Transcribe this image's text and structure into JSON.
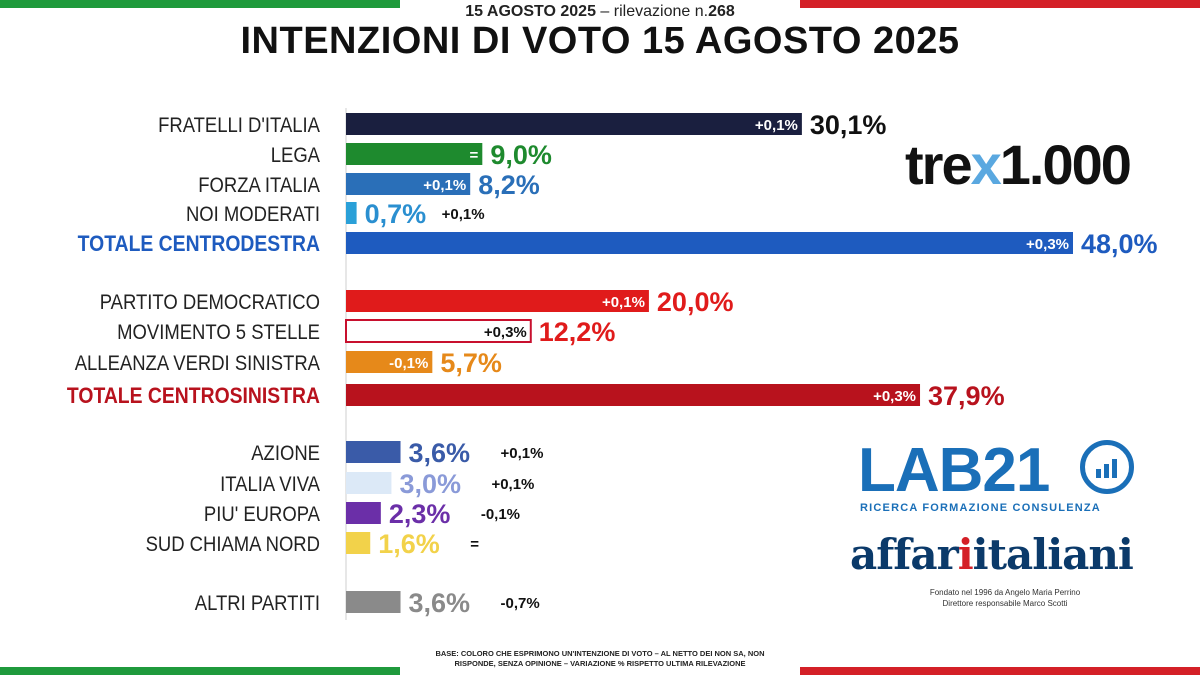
{
  "header": {
    "date": "15 AGOSTO 2025",
    "separator": "–",
    "survey_label": "rilevazione n.",
    "survey_number": "268",
    "title": "INTENZIONI DI VOTO 15 AGOSTO 2025"
  },
  "logos": {
    "trex_part1": "tre",
    "trex_x": "x",
    "trex_part2": "1.000",
    "lab21": "LAB21",
    "lab21_sub": "RICERCA FORMAZIONE CONSULENZA",
    "affari_part1": "affar",
    "affari_one": "i",
    "affari_part2": "italiani",
    "affari_line1": "Fondato nel 1996 da Angelo Maria Perrino",
    "affari_line2": "Direttore responsabile Marco Scotti"
  },
  "footnote": {
    "line1": "BASE: COLORO CHE ESPRIMONO UN'INTENZIONE DI VOTO – AL NETTO DEI NON SA, NON",
    "line2": "RISPONDE, SENZA OPINIONE – VARIAZIONE % RISPETTO ULTIMA RILEVAZIONE"
  },
  "colors": {
    "fdi": "#1a1f3f",
    "lega": "#1e8a2e",
    "fi": "#2a6fb8",
    "nm": "#2aa0d8",
    "cdx": "#1e5bbf",
    "pd": "#e01b1b",
    "m5s": "#ffffff",
    "avs": "#e6891a",
    "csx": "#b8121d",
    "az": "#3a5ba8",
    "iv": "#dce9f7",
    "pe": "#6b2fa8",
    "scn": "#f2d24a",
    "altri": "#8a8a8a",
    "flag_green": "#1f9a3c",
    "flag_red": "#d42027"
  },
  "chart_data": {
    "type": "bar",
    "orientation": "horizontal",
    "unit": "%",
    "xlim": [
      0,
      50
    ],
    "categories": [
      "FRATELLI D'ITALIA",
      "LEGA",
      "FORZA ITALIA",
      "NOI MODERATI",
      "TOTALE CENTRODESTRA",
      "PARTITO DEMOCRATICO",
      "MOVIMENTO 5 STELLE",
      "ALLEANZA VERDI SINISTRA",
      "TOTALE CENTROSINISTRA",
      "AZIONE",
      "ITALIA VIVA",
      "PIU' EUROPA",
      "SUD CHIAMA NORD",
      "ALTRI PARTITI"
    ],
    "values": [
      30.1,
      9.0,
      8.2,
      0.7,
      48.0,
      20.0,
      12.2,
      5.7,
      37.9,
      3.6,
      3.0,
      2.3,
      1.6,
      3.6
    ],
    "value_labels": [
      "30,1%",
      "9,0%",
      "8,2%",
      "0,7%",
      "48,0%",
      "20,0%",
      "12,2%",
      "5,7%",
      "37,9%",
      "3,6%",
      "3,0%",
      "2,3%",
      "1,6%",
      "3,6%"
    ],
    "change_labels": [
      "+0,1%",
      "=",
      "+0,1%",
      "+0,1%",
      "+0,3%",
      "+0,1%",
      "+0,3%",
      "-0,1%",
      "+0,3%",
      "+0,1%",
      "+0,1%",
      "-0,1%",
      "=",
      "-0,7%"
    ],
    "bar_colors": [
      "#1a1f3f",
      "#1e8a2e",
      "#2a6fb8",
      "#2aa0d8",
      "#1e5bbf",
      "#e01b1b",
      "#ffffff",
      "#e6891a",
      "#b8121d",
      "#3a5ba8",
      "#dce9f7",
      "#6b2fa8",
      "#f2d24a",
      "#8a8a8a"
    ],
    "value_colors": [
      "#111111",
      "#1e8a2e",
      "#2a6fb8",
      "#2a8fd0",
      "#1e5bbf",
      "#e01b1b",
      "#e01b1b",
      "#e6891a",
      "#b8121d",
      "#3a5ba8",
      "#8a9ad8",
      "#6b2fa8",
      "#f2d24a",
      "#8a8a8a"
    ],
    "totals": [
      "TOTALE CENTRODESTRA",
      "TOTALE CENTROSINISTRA"
    ]
  }
}
